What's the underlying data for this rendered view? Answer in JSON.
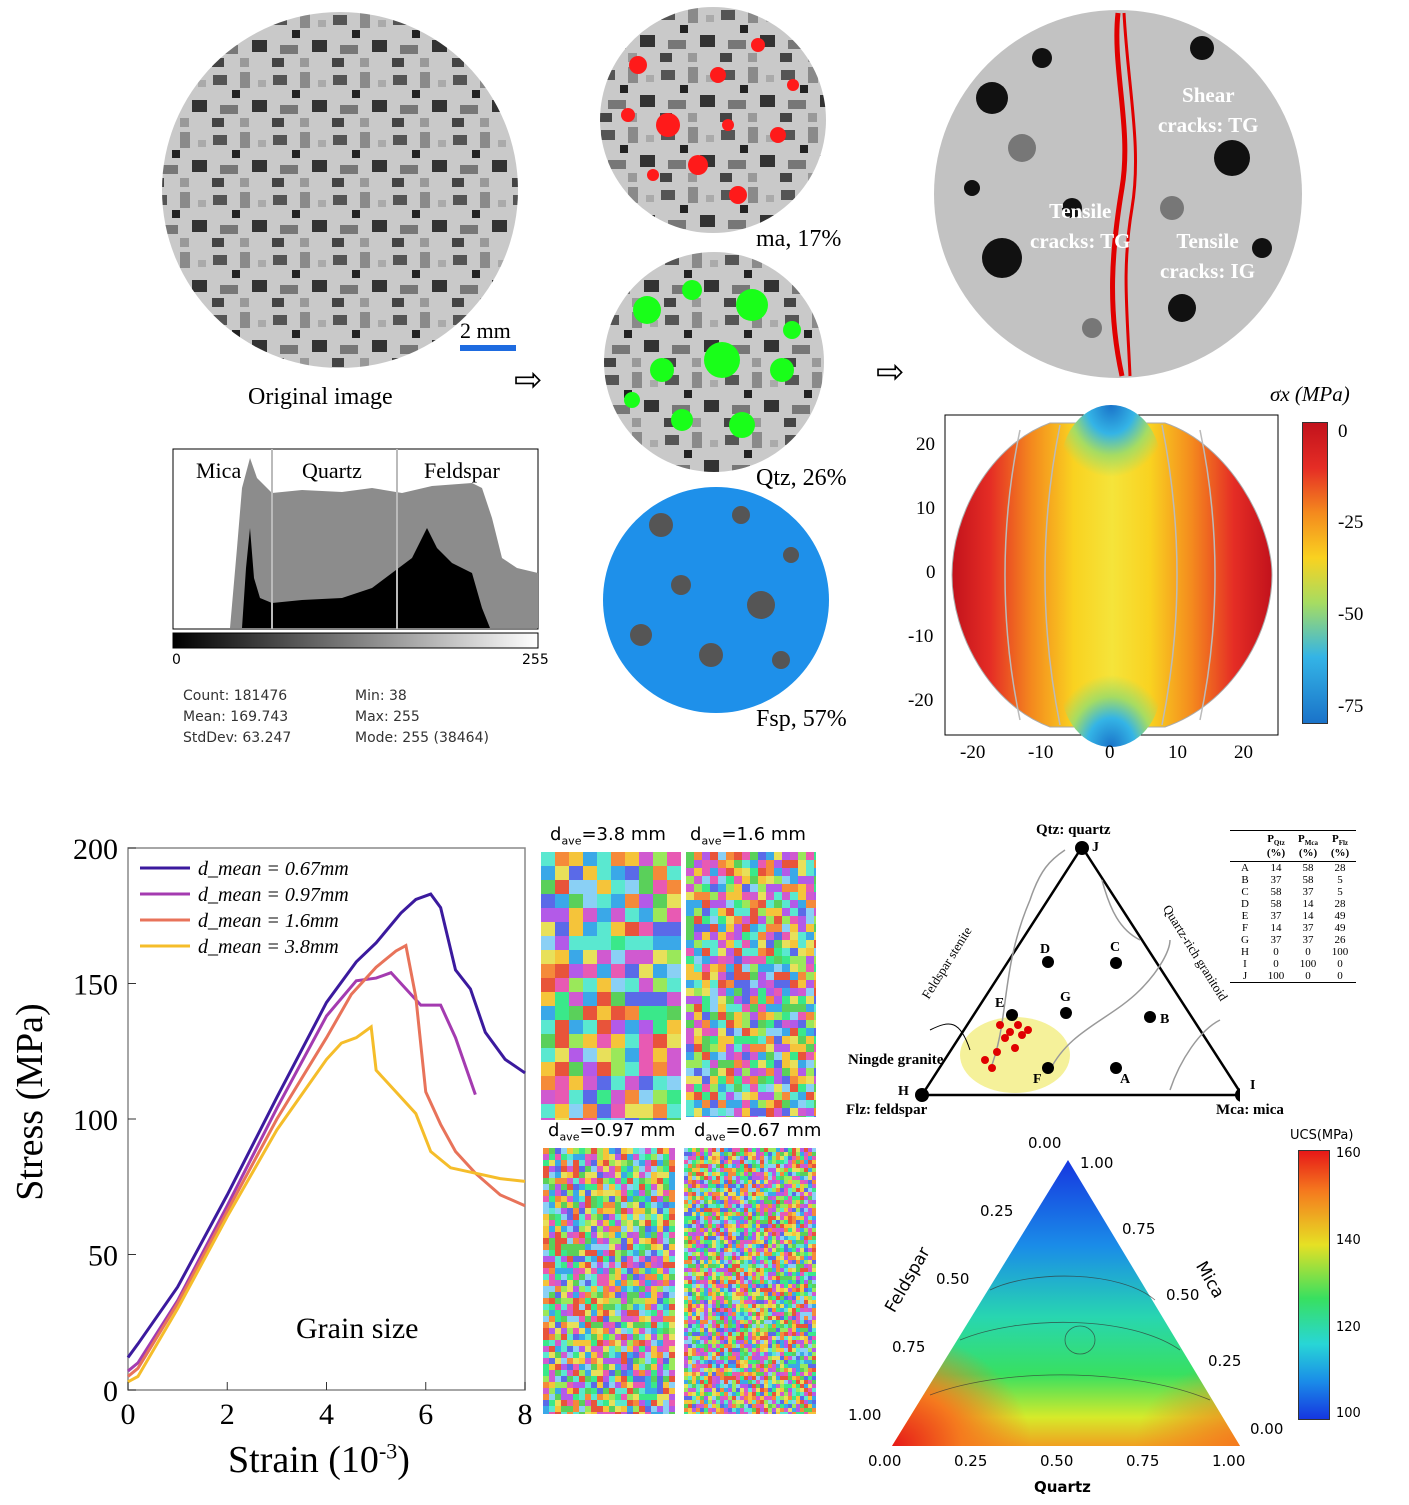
{
  "panel_a": {
    "original_label": "Original image",
    "scalebar_label": "2 mm",
    "histogram": {
      "labels": [
        "Mica",
        "Quartz",
        "Feldspar"
      ],
      "axis_min": "0",
      "axis_max": "255",
      "stats": {
        "count": "Count: 181476",
        "mean": "Mean: 169.743",
        "stddev": "StdDev: 63.247",
        "min": "Min: 38",
        "max": "Max: 255",
        "mode": "Mode: 255 (38464)"
      }
    },
    "segments": [
      {
        "label": "ma, 17%",
        "color": "#ff1a1a"
      },
      {
        "label": "Qtz, 26%",
        "color": "#19ff19"
      },
      {
        "label": "Fsp, 57%",
        "color": "#1e90ea"
      }
    ],
    "crack_labels": [
      "Shear",
      "cracks: TG",
      "Tensile",
      "cracks: TG",
      "Tensile",
      "cracks: IG"
    ],
    "contour": {
      "colorbar_title": "σx (MPa)",
      "colorbar_ticks": [
        "0",
        "-25",
        "-50",
        "-75"
      ],
      "x_ticks": [
        "-20",
        "-10",
        "0",
        "10",
        "20"
      ],
      "y_ticks": [
        "20",
        "10",
        "0",
        "-10",
        "-20"
      ]
    }
  },
  "panel_b": {
    "title": "Grain size",
    "xlabel": "Strain (10",
    "xlabel_sup": "-3",
    "xlabel_end": ")",
    "ylabel": "Stress (MPa)",
    "chart_data": {
      "type": "line",
      "xlabel": "Strain (10-3)",
      "ylabel": "Stress (MPa)",
      "xlim": [
        0,
        8
      ],
      "ylim": [
        0,
        200
      ],
      "x_ticks": [
        "0",
        "2",
        "4",
        "6",
        "8"
      ],
      "y_ticks": [
        "0",
        "50",
        "100",
        "150",
        "200"
      ],
      "legend_position": "top-left",
      "series": [
        {
          "name": "d_mean = 0.67mm",
          "color": "#3b1a9e",
          "points": [
            [
              0,
              12
            ],
            [
              0.2,
              17
            ],
            [
              1,
              38
            ],
            [
              2,
              72
            ],
            [
              3,
              108
            ],
            [
              4,
              143
            ],
            [
              4.6,
              158
            ],
            [
              5,
              165
            ],
            [
              5.5,
              176
            ],
            [
              5.8,
              181
            ],
            [
              6.1,
              183
            ],
            [
              6.3,
              178
            ],
            [
              6.6,
              155
            ],
            [
              6.9,
              148
            ],
            [
              7.2,
              132
            ],
            [
              7.6,
              122
            ],
            [
              8,
              117
            ]
          ]
        },
        {
          "name": "d_mean = 0.97mm",
          "color": "#a43bb0",
          "points": [
            [
              0,
              7
            ],
            [
              0.2,
              10
            ],
            [
              1,
              33
            ],
            [
              2,
              68
            ],
            [
              3,
              104
            ],
            [
              4,
              138
            ],
            [
              4.6,
              151
            ],
            [
              5,
              152
            ],
            [
              5.3,
              154
            ],
            [
              5.6,
              148
            ],
            [
              5.9,
              142
            ],
            [
              6.3,
              142
            ],
            [
              6.6,
              130
            ],
            [
              7,
              109
            ]
          ]
        },
        {
          "name": "d_mean = 1.6mm",
          "color": "#e8735a",
          "points": [
            [
              0,
              5
            ],
            [
              0.2,
              8
            ],
            [
              1,
              32
            ],
            [
              2,
              66
            ],
            [
              3,
              100
            ],
            [
              4,
              130
            ],
            [
              4.5,
              146
            ],
            [
              5,
              156
            ],
            [
              5.4,
              162
            ],
            [
              5.6,
              164
            ],
            [
              5.8,
              145
            ],
            [
              6,
              110
            ],
            [
              6.3,
              98
            ],
            [
              6.6,
              88
            ],
            [
              7,
              80
            ],
            [
              7.5,
              72
            ],
            [
              8,
              68
            ]
          ]
        },
        {
          "name": "d_mean = 3.8mm",
          "color": "#f5bd2a",
          "points": [
            [
              0,
              3
            ],
            [
              0.2,
              5
            ],
            [
              1,
              30
            ],
            [
              2,
              64
            ],
            [
              3,
              96
            ],
            [
              4,
              122
            ],
            [
              4.3,
              128
            ],
            [
              4.6,
              130
            ],
            [
              4.9,
              134
            ],
            [
              5,
              118
            ],
            [
              5.4,
              110
            ],
            [
              5.8,
              102
            ],
            [
              6.1,
              88
            ],
            [
              6.5,
              82
            ],
            [
              7,
              80
            ],
            [
              7.5,
              78
            ],
            [
              8,
              77
            ]
          ]
        }
      ]
    },
    "grain_labels": [
      "d",
      "ave",
      "=3.8 mm",
      "=1.6 mm",
      "=0.97 mm",
      "=0.67 mm"
    ]
  },
  "panel_c": {
    "ternary_labels": {
      "top": "Qtz: quartz",
      "left": "Flz: feldspar",
      "right": "Mca: mica",
      "left_side": "Feldspar stenite",
      "right_side": "Quartz-rich granitoid",
      "ningde": "Ningde granite"
    },
    "points": [
      "A",
      "B",
      "C",
      "D",
      "E",
      "F",
      "G",
      "H",
      "I",
      "J"
    ],
    "table": {
      "headers": [
        "",
        "P",
        "P",
        "P"
      ],
      "header_subs": [
        "",
        "Qtz",
        "Mca",
        "Flz"
      ],
      "units": [
        "",
        "(%)",
        "(%)",
        "(%)"
      ],
      "rows": [
        [
          "A",
          "14",
          "58",
          "28"
        ],
        [
          "B",
          "37",
          "58",
          "5"
        ],
        [
          "C",
          "58",
          "37",
          "5"
        ],
        [
          "D",
          "58",
          "14",
          "28"
        ],
        [
          "E",
          "37",
          "14",
          "49"
        ],
        [
          "F",
          "14",
          "37",
          "49"
        ],
        [
          "G",
          "37",
          "37",
          "26"
        ],
        [
          "H",
          "0",
          "0",
          "100"
        ],
        [
          "I",
          "0",
          "100",
          "0"
        ],
        [
          "J",
          "100",
          "0",
          "0"
        ]
      ]
    },
    "ucs": {
      "colorbar_title": "UCS(MPa)",
      "colorbar_ticks": [
        "160",
        "140",
        "120",
        "100"
      ],
      "axis_quartz": "Quartz",
      "axis_feldspar": "Feldspar",
      "axis_mica": "Mica",
      "bottom_ticks": [
        "0.00",
        "0.25",
        "0.50",
        "0.75",
        "1.00"
      ],
      "left_ticks": [
        "0.00",
        "0.25",
        "0.50",
        "0.75",
        "1.00"
      ],
      "right_ticks": [
        "1.00",
        "0.75",
        "0.50",
        "0.25",
        "0.00"
      ]
    }
  }
}
